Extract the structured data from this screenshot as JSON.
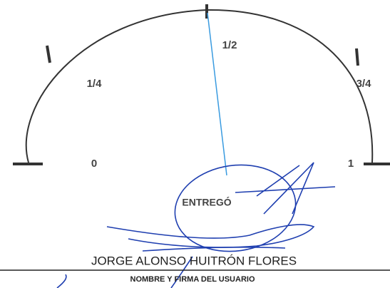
{
  "gauge": {
    "labels": [
      "0",
      "1/4",
      "1/2",
      "3/4",
      "1"
    ]
  },
  "signature": {
    "caption": "ENTREGÓ",
    "name": "JORGE ALONSO HUITRÓN FLORES",
    "footer": "NOMBRE Y FIRMA DEL USUARIO"
  }
}
